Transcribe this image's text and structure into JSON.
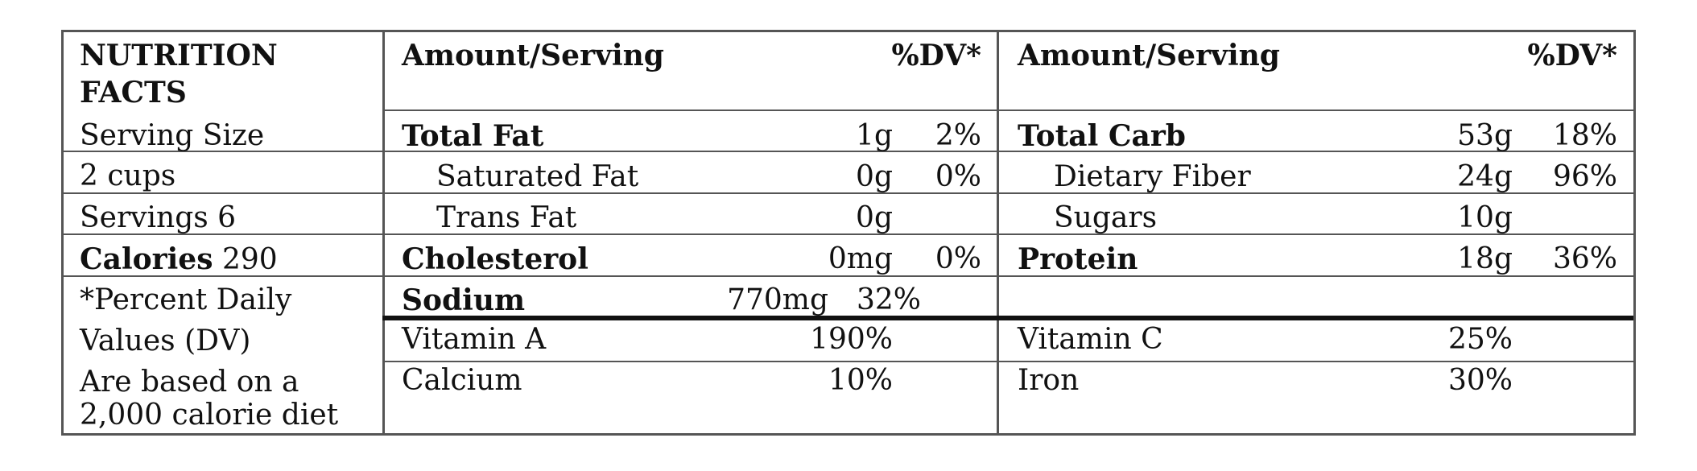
{
  "header": {
    "title_line1": "NUTRITION",
    "title_line2": "FACTS",
    "left_amount": "Amount/Serving",
    "left_dv": "%DV*",
    "right_amount": "Amount/Serving",
    "right_dv": "%DV*"
  },
  "serving": {
    "size_label": "Serving Size",
    "size_value": "2 cups",
    "servings": "Servings 6",
    "calories_label": "Calories",
    "calories_value": "290"
  },
  "footnote": [
    "*Percent Daily",
    "Values (DV)",
    "Are based on a",
    "2,000 calorie diet"
  ],
  "left_nutrients": [
    {
      "name": "Total Fat",
      "amount": "1g",
      "dv": "2%"
    },
    {
      "name": "Saturated Fat",
      "amount": "0g",
      "dv": "0%"
    },
    {
      "name": "Trans Fat",
      "amount": "0g",
      "dv": ""
    },
    {
      "name": "Cholesterol",
      "amount": "0mg",
      "dv": "0%"
    },
    {
      "name": "Sodium",
      "amount": "770mg",
      "dv": "32%"
    }
  ],
  "right_nutrients": [
    {
      "name": "Total Carb",
      "amount": "53g",
      "dv": "18%"
    },
    {
      "name": "Dietary Fiber",
      "amount": "24g",
      "dv": "96%"
    },
    {
      "name": "Sugars",
      "amount": "10g",
      "dv": ""
    },
    {
      "name": "Protein",
      "amount": "18g",
      "dv": "36%"
    }
  ],
  "vitamins": [
    {
      "name": "Vitamin A",
      "value": "190%"
    },
    {
      "name": "Vitamin C",
      "value": "25%"
    },
    {
      "name": "Calcium",
      "value": "10%"
    },
    {
      "name": "Iron",
      "value": "30%"
    }
  ]
}
